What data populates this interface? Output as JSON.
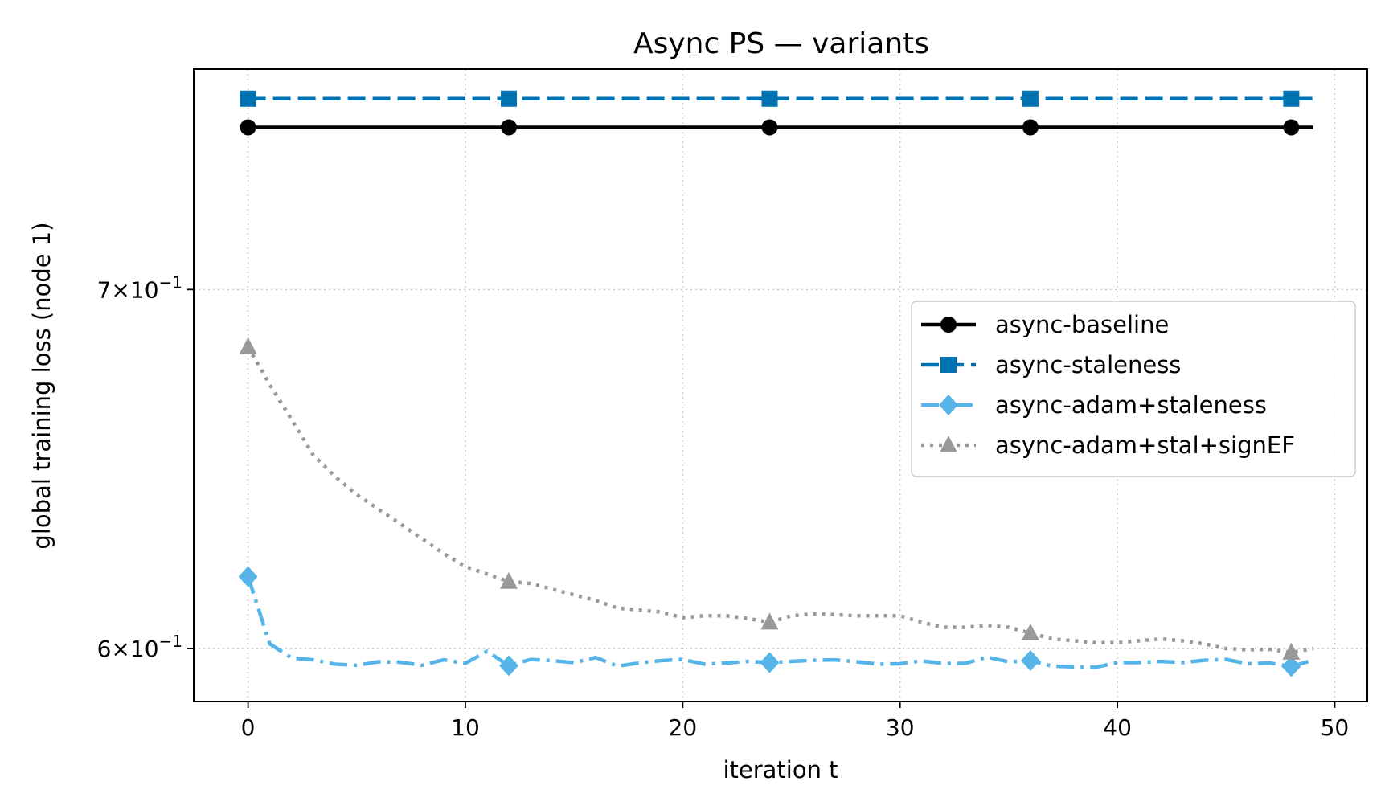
{
  "chart_data": {
    "type": "line",
    "title": "Async PS — variants",
    "xlabel": "iteration t",
    "ylabel": "global training loss (node 1)",
    "xlim": [
      -2.5,
      51.5
    ],
    "ylim": [
      0.5865,
      0.7695
    ],
    "yscale": "log",
    "grid": true,
    "legend_position": "center-right",
    "x_ticks": [
      {
        "value": 0,
        "label": "0"
      },
      {
        "value": 10,
        "label": "10"
      },
      {
        "value": 20,
        "label": "20"
      },
      {
        "value": 30,
        "label": "30"
      },
      {
        "value": 40,
        "label": "40"
      },
      {
        "value": 50,
        "label": "50"
      }
    ],
    "y_ticks": [
      {
        "value": 0.6,
        "mantissa": "6",
        "exponent": "−1"
      },
      {
        "value": 0.7,
        "mantissa": "7",
        "exponent": "−1"
      }
    ],
    "x": [
      0,
      1,
      2,
      3,
      4,
      5,
      6,
      7,
      8,
      9,
      10,
      11,
      12,
      13,
      14,
      15,
      16,
      17,
      18,
      19,
      20,
      21,
      22,
      23,
      24,
      25,
      26,
      27,
      28,
      29,
      30,
      31,
      32,
      33,
      34,
      35,
      36,
      37,
      38,
      39,
      40,
      41,
      42,
      43,
      44,
      45,
      46,
      47,
      48,
      49
    ],
    "series": [
      {
        "name": "async-baseline",
        "color": "#000000",
        "dash": "solid",
        "marker": "circle",
        "marker_every": 12,
        "values": [
          0.7505,
          0.7505,
          0.7505,
          0.7505,
          0.7505,
          0.7505,
          0.7505,
          0.7505,
          0.7505,
          0.7505,
          0.7505,
          0.7505,
          0.7505,
          0.7505,
          0.7505,
          0.7505,
          0.7505,
          0.7505,
          0.7505,
          0.7505,
          0.7505,
          0.7505,
          0.7505,
          0.7505,
          0.7505,
          0.7505,
          0.7505,
          0.7505,
          0.7505,
          0.7505,
          0.7505,
          0.7505,
          0.7505,
          0.7505,
          0.7505,
          0.7505,
          0.7505,
          0.7505,
          0.7505,
          0.7505,
          0.7505,
          0.7505,
          0.7505,
          0.7505,
          0.7505,
          0.7505,
          0.7505,
          0.7505,
          0.7505,
          0.7505
        ]
      },
      {
        "name": "async-staleness",
        "color": "#0072b2",
        "dash": "dashed",
        "marker": "square",
        "marker_every": 12,
        "values": [
          0.7598,
          0.7598,
          0.7598,
          0.7598,
          0.7598,
          0.7598,
          0.7598,
          0.7598,
          0.7598,
          0.7598,
          0.7598,
          0.7598,
          0.7598,
          0.7598,
          0.7598,
          0.7598,
          0.7598,
          0.7598,
          0.7598,
          0.7598,
          0.7598,
          0.7598,
          0.7598,
          0.7598,
          0.7598,
          0.7598,
          0.7598,
          0.7598,
          0.7598,
          0.7598,
          0.7598,
          0.7598,
          0.7598,
          0.7598,
          0.7598,
          0.7598,
          0.7598,
          0.7598,
          0.7598,
          0.7598,
          0.7598,
          0.7598,
          0.7598,
          0.7598,
          0.7598,
          0.7598,
          0.7598,
          0.7598,
          0.7598,
          0.7598
        ]
      },
      {
        "name": "async-adam+staleness",
        "color": "#56b4e9",
        "dash": "dashdot",
        "marker": "diamond",
        "marker_every": 12,
        "values": [
          0.6188,
          0.6012,
          0.5976,
          0.5971,
          0.596,
          0.5957,
          0.5966,
          0.5965,
          0.5957,
          0.5971,
          0.5962,
          0.5993,
          0.5956,
          0.5972,
          0.5969,
          0.5964,
          0.5977,
          0.5955,
          0.5963,
          0.5969,
          0.5972,
          0.596,
          0.5963,
          0.5967,
          0.5964,
          0.5967,
          0.597,
          0.5971,
          0.5966,
          0.596,
          0.5961,
          0.5968,
          0.5962,
          0.5962,
          0.5978,
          0.5966,
          0.5969,
          0.5955,
          0.5953,
          0.5952,
          0.5964,
          0.5964,
          0.5967,
          0.5964,
          0.597,
          0.5972,
          0.5961,
          0.5963,
          0.5954,
          0.597
        ]
      },
      {
        "name": "async-adam+stal+signEF",
        "color": "#999999",
        "dash": "dotted",
        "marker": "triangle",
        "marker_every": 12,
        "values": [
          0.683,
          0.672,
          0.662,
          0.652,
          0.646,
          0.641,
          0.637,
          0.633,
          0.629,
          0.625,
          0.6215,
          0.6195,
          0.6175,
          0.617,
          0.6155,
          0.614,
          0.6125,
          0.6105,
          0.61,
          0.6095,
          0.608,
          0.6085,
          0.6085,
          0.6078,
          0.6068,
          0.6085,
          0.609,
          0.6088,
          0.6085,
          0.6085,
          0.6085,
          0.6068,
          0.6055,
          0.6055,
          0.606,
          0.6055,
          0.604,
          0.6025,
          0.602,
          0.6015,
          0.6015,
          0.602,
          0.6025,
          0.602,
          0.6012,
          0.6,
          0.5997,
          0.5998,
          0.599,
          0.6
        ]
      }
    ]
  }
}
